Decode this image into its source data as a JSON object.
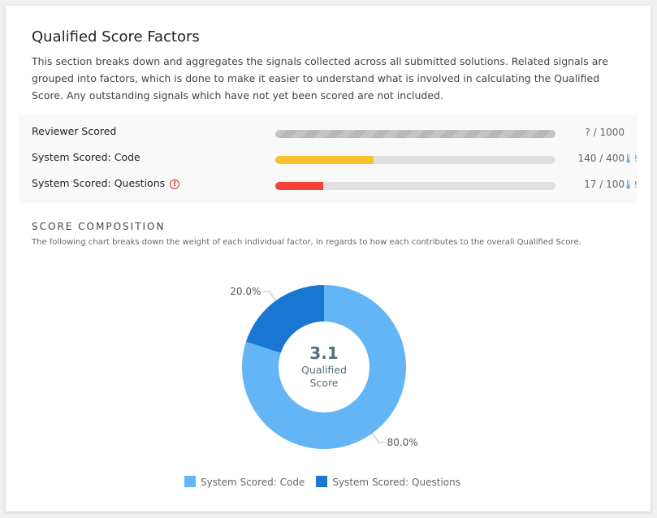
{
  "title": "Qualified Score Factors",
  "description": "This section breaks down and aggregates the signals collected across all submitted solutions. Related signals are grouped into factors, which is done to make it easier to understand what is involved in calculating the Qualified Score. Any outstanding signals which have not yet been scored are not included.",
  "factors": [
    {
      "label": "Reviewer Scored",
      "value": "? / 1000",
      "progress": null,
      "color": "#bdbdbd"
    },
    {
      "label": "System Scored: Code",
      "value": "140 / 400",
      "progress": 0.35,
      "color": "#fbc02d",
      "icon": "thermometer-alert-icon"
    },
    {
      "label": "System Scored: Questions",
      "value": "17 / 100",
      "progress": 0.17,
      "color": "#f44336",
      "icon": "thermometer-alert-icon",
      "warning": "exclamation-circle-icon"
    }
  ],
  "composition": {
    "heading": "SCORE COMPOSITION",
    "subtitle": "The following chart breaks down the weight of each individual factor, in regards to how each contributes to the overall Qualified Score.",
    "center_value": "3.1",
    "center_label_1": "Qualified",
    "center_label_2": "Score"
  },
  "chart_data": {
    "type": "pie",
    "donut": true,
    "categories": [
      "System Scored: Code",
      "System Scored: Questions"
    ],
    "values": [
      80.0,
      20.0
    ],
    "labels": [
      "80.0%",
      "20.0%"
    ],
    "colors": [
      "#64b5f6",
      "#1976d2"
    ],
    "legend": "bottom"
  }
}
